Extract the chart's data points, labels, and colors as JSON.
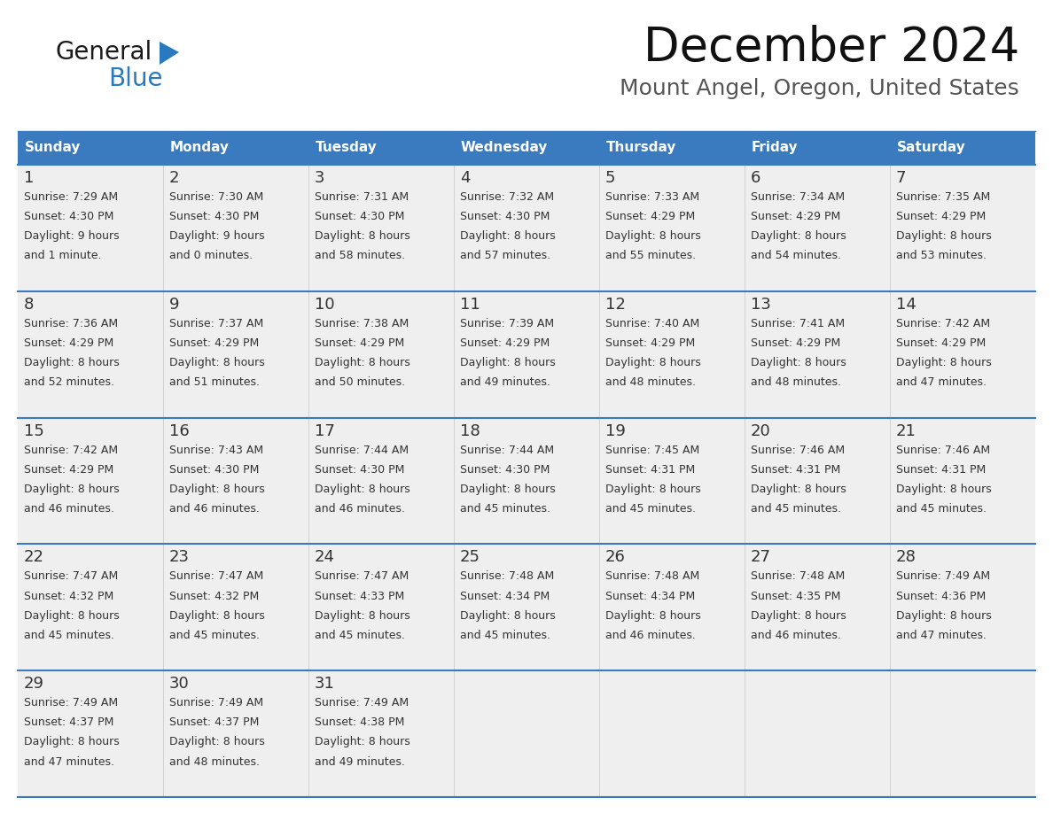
{
  "title": "December 2024",
  "subtitle": "Mount Angel, Oregon, United States",
  "header_color": "#3a7abf",
  "header_text_color": "#ffffff",
  "cell_bg_color": "#efefef",
  "text_color": "#333333",
  "separator_color": "#3a7abf",
  "grid_color": "#cccccc",
  "days_of_week": [
    "Sunday",
    "Monday",
    "Tuesday",
    "Wednesday",
    "Thursday",
    "Friday",
    "Saturday"
  ],
  "weeks": [
    [
      {
        "day": 1,
        "sunrise": "7:29 AM",
        "sunset": "4:30 PM",
        "daylight": "9 hours",
        "daylight2": "and 1 minute."
      },
      {
        "day": 2,
        "sunrise": "7:30 AM",
        "sunset": "4:30 PM",
        "daylight": "9 hours",
        "daylight2": "and 0 minutes."
      },
      {
        "day": 3,
        "sunrise": "7:31 AM",
        "sunset": "4:30 PM",
        "daylight": "8 hours",
        "daylight2": "and 58 minutes."
      },
      {
        "day": 4,
        "sunrise": "7:32 AM",
        "sunset": "4:30 PM",
        "daylight": "8 hours",
        "daylight2": "and 57 minutes."
      },
      {
        "day": 5,
        "sunrise": "7:33 AM",
        "sunset": "4:29 PM",
        "daylight": "8 hours",
        "daylight2": "and 55 minutes."
      },
      {
        "day": 6,
        "sunrise": "7:34 AM",
        "sunset": "4:29 PM",
        "daylight": "8 hours",
        "daylight2": "and 54 minutes."
      },
      {
        "day": 7,
        "sunrise": "7:35 AM",
        "sunset": "4:29 PM",
        "daylight": "8 hours",
        "daylight2": "and 53 minutes."
      }
    ],
    [
      {
        "day": 8,
        "sunrise": "7:36 AM",
        "sunset": "4:29 PM",
        "daylight": "8 hours",
        "daylight2": "and 52 minutes."
      },
      {
        "day": 9,
        "sunrise": "7:37 AM",
        "sunset": "4:29 PM",
        "daylight": "8 hours",
        "daylight2": "and 51 minutes."
      },
      {
        "day": 10,
        "sunrise": "7:38 AM",
        "sunset": "4:29 PM",
        "daylight": "8 hours",
        "daylight2": "and 50 minutes."
      },
      {
        "day": 11,
        "sunrise": "7:39 AM",
        "sunset": "4:29 PM",
        "daylight": "8 hours",
        "daylight2": "and 49 minutes."
      },
      {
        "day": 12,
        "sunrise": "7:40 AM",
        "sunset": "4:29 PM",
        "daylight": "8 hours",
        "daylight2": "and 48 minutes."
      },
      {
        "day": 13,
        "sunrise": "7:41 AM",
        "sunset": "4:29 PM",
        "daylight": "8 hours",
        "daylight2": "and 48 minutes."
      },
      {
        "day": 14,
        "sunrise": "7:42 AM",
        "sunset": "4:29 PM",
        "daylight": "8 hours",
        "daylight2": "and 47 minutes."
      }
    ],
    [
      {
        "day": 15,
        "sunrise": "7:42 AM",
        "sunset": "4:29 PM",
        "daylight": "8 hours",
        "daylight2": "and 46 minutes."
      },
      {
        "day": 16,
        "sunrise": "7:43 AM",
        "sunset": "4:30 PM",
        "daylight": "8 hours",
        "daylight2": "and 46 minutes."
      },
      {
        "day": 17,
        "sunrise": "7:44 AM",
        "sunset": "4:30 PM",
        "daylight": "8 hours",
        "daylight2": "and 46 minutes."
      },
      {
        "day": 18,
        "sunrise": "7:44 AM",
        "sunset": "4:30 PM",
        "daylight": "8 hours",
        "daylight2": "and 45 minutes."
      },
      {
        "day": 19,
        "sunrise": "7:45 AM",
        "sunset": "4:31 PM",
        "daylight": "8 hours",
        "daylight2": "and 45 minutes."
      },
      {
        "day": 20,
        "sunrise": "7:46 AM",
        "sunset": "4:31 PM",
        "daylight": "8 hours",
        "daylight2": "and 45 minutes."
      },
      {
        "day": 21,
        "sunrise": "7:46 AM",
        "sunset": "4:31 PM",
        "daylight": "8 hours",
        "daylight2": "and 45 minutes."
      }
    ],
    [
      {
        "day": 22,
        "sunrise": "7:47 AM",
        "sunset": "4:32 PM",
        "daylight": "8 hours",
        "daylight2": "and 45 minutes."
      },
      {
        "day": 23,
        "sunrise": "7:47 AM",
        "sunset": "4:32 PM",
        "daylight": "8 hours",
        "daylight2": "and 45 minutes."
      },
      {
        "day": 24,
        "sunrise": "7:47 AM",
        "sunset": "4:33 PM",
        "daylight": "8 hours",
        "daylight2": "and 45 minutes."
      },
      {
        "day": 25,
        "sunrise": "7:48 AM",
        "sunset": "4:34 PM",
        "daylight": "8 hours",
        "daylight2": "and 45 minutes."
      },
      {
        "day": 26,
        "sunrise": "7:48 AM",
        "sunset": "4:34 PM",
        "daylight": "8 hours",
        "daylight2": "and 46 minutes."
      },
      {
        "day": 27,
        "sunrise": "7:48 AM",
        "sunset": "4:35 PM",
        "daylight": "8 hours",
        "daylight2": "and 46 minutes."
      },
      {
        "day": 28,
        "sunrise": "7:49 AM",
        "sunset": "4:36 PM",
        "daylight": "8 hours",
        "daylight2": "and 47 minutes."
      }
    ],
    [
      {
        "day": 29,
        "sunrise": "7:49 AM",
        "sunset": "4:37 PM",
        "daylight": "8 hours",
        "daylight2": "and 47 minutes."
      },
      {
        "day": 30,
        "sunrise": "7:49 AM",
        "sunset": "4:37 PM",
        "daylight": "8 hours",
        "daylight2": "and 48 minutes."
      },
      {
        "day": 31,
        "sunrise": "7:49 AM",
        "sunset": "4:38 PM",
        "daylight": "8 hours",
        "daylight2": "and 49 minutes."
      },
      null,
      null,
      null,
      null
    ]
  ],
  "logo_color_general": "#1a1a1a",
  "logo_color_blue": "#2879c0",
  "logo_triangle_color": "#2879c0",
  "title_fontsize": 38,
  "subtitle_fontsize": 18,
  "header_fontsize": 11,
  "day_num_fontsize": 13,
  "cell_text_fontsize": 9
}
